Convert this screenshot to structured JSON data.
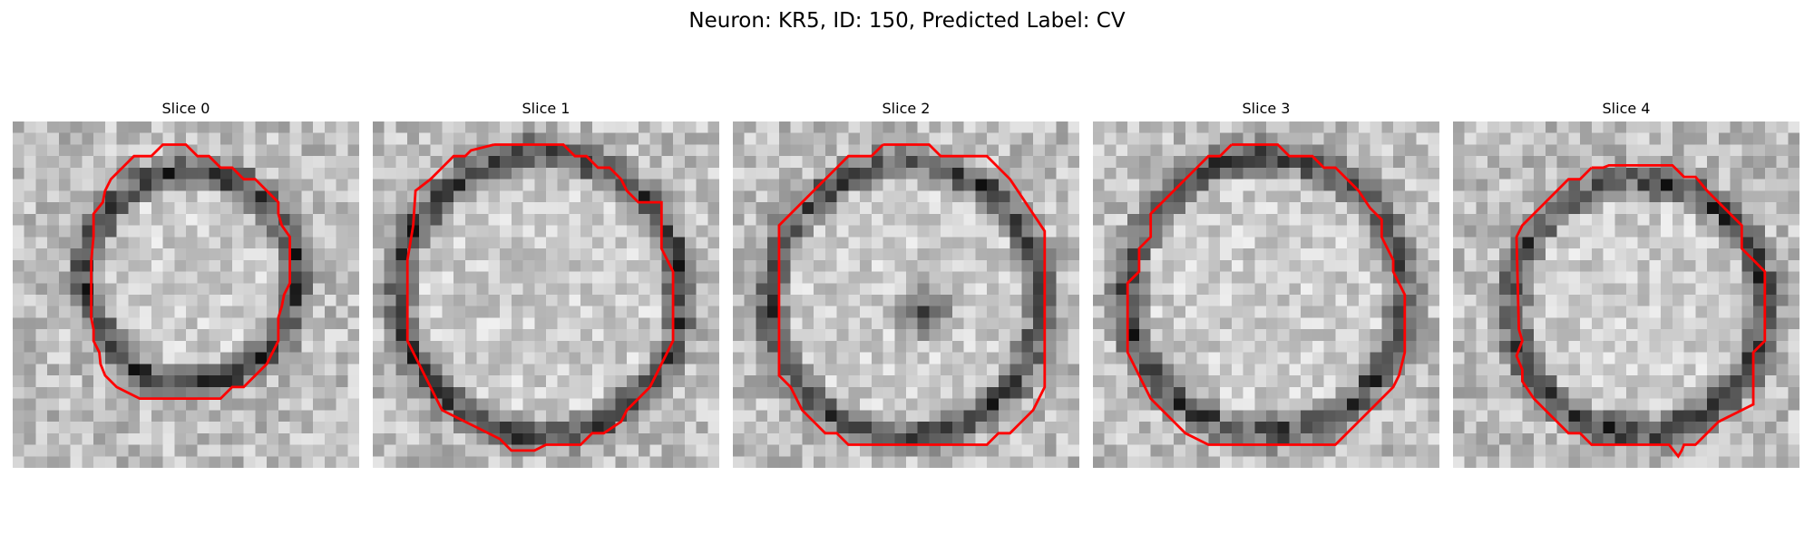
{
  "figure": {
    "title": "Neuron: KR5, ID: 150, Predicted Label: CV"
  },
  "panels": [
    {
      "title": "Slice 0"
    },
    {
      "title": "Slice 1"
    },
    {
      "title": "Slice 2"
    },
    {
      "title": "Slice 3"
    },
    {
      "title": "Slice 4"
    }
  ],
  "colors": {
    "contour": "#ff0000",
    "background": "#ffffff"
  }
}
